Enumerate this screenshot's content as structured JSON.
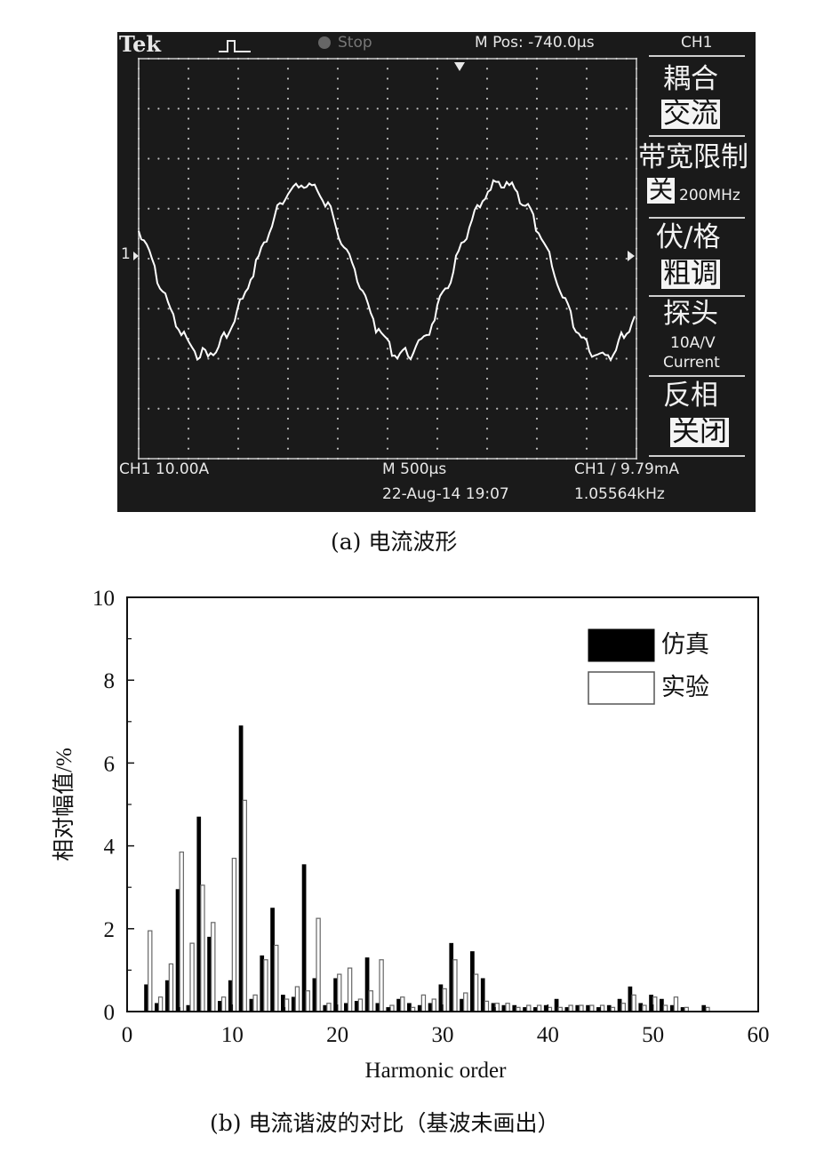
{
  "scope": {
    "brand": "Tek",
    "status": "Stop",
    "mpos": "M Pos: -740.0µs",
    "channel": "CH1",
    "ch_scale": "CH1 10.00A",
    "timebase": "M 500µs",
    "trigger": "CH1 ∕ 9.79mA",
    "datetime": "22-Aug-14 19:07",
    "frequency": "1.05564kHz",
    "ch_marker": "1",
    "menu": {
      "coupling_title": "耦合",
      "coupling_value": "交流",
      "bw_title": "带宽限制",
      "bw_value": "关",
      "bw_freq": "200MHz",
      "vdiv_title": "伏/格",
      "vdiv_value": "粗调",
      "probe_title": "探头",
      "probe_ratio": "10A/V",
      "probe_type": "Current",
      "invert_title": "反相",
      "invert_value": "关闭"
    },
    "colors": {
      "screen": "#1a1a1a",
      "trace": "#ffffff",
      "grid": "#bbbbbb"
    }
  },
  "captions": {
    "a": "(a) 电流波形",
    "b": "(b) 电流谐波的对比（基波未画出）"
  },
  "chart_data": {
    "type": "bar",
    "xlabel": "Harmonic order",
    "ylabel": "相对幅值/%",
    "xlim": [
      0,
      60
    ],
    "ylim": [
      0,
      10
    ],
    "xticks": [
      0,
      10,
      20,
      30,
      40,
      50,
      60
    ],
    "yticks": [
      0,
      2,
      4,
      6,
      8,
      10
    ],
    "grid": false,
    "legend_position": "top-right",
    "series": [
      {
        "name": "仿真",
        "color": "#000000",
        "x": [
          2,
          3,
          4,
          5,
          6,
          7,
          8,
          9,
          10,
          11,
          12,
          13,
          14,
          15,
          16,
          17,
          18,
          19,
          20,
          21,
          22,
          23,
          24,
          25,
          26,
          27,
          28,
          29,
          30,
          31,
          32,
          33,
          34,
          35,
          36,
          37,
          38,
          39,
          40,
          41,
          42,
          43,
          44,
          45,
          46,
          47,
          48,
          49,
          50,
          51,
          52,
          53,
          55
        ],
        "values": [
          0.65,
          0.2,
          0.75,
          2.95,
          0.15,
          4.7,
          1.8,
          0.25,
          0.75,
          6.9,
          0.3,
          1.35,
          2.5,
          0.4,
          0.35,
          3.55,
          0.8,
          0.15,
          0.8,
          0.2,
          0.25,
          1.3,
          0.2,
          0.1,
          0.3,
          0.2,
          0.15,
          0.2,
          0.65,
          1.65,
          0.3,
          1.45,
          0.8,
          0.2,
          0.15,
          0.15,
          0.1,
          0.1,
          0.15,
          0.3,
          0.1,
          0.15,
          0.15,
          0.1,
          0.15,
          0.3,
          0.6,
          0.2,
          0.4,
          0.3,
          0.15,
          0.1,
          0.15
        ]
      },
      {
        "name": "实验",
        "color": "#ffffff",
        "x": [
          2,
          3,
          4,
          5,
          6,
          7,
          8,
          9,
          10,
          11,
          12,
          13,
          14,
          15,
          16,
          17,
          18,
          19,
          20,
          21,
          22,
          23,
          24,
          25,
          26,
          27,
          28,
          29,
          30,
          31,
          32,
          33,
          34,
          35,
          36,
          37,
          38,
          39,
          40,
          41,
          42,
          43,
          44,
          45,
          46,
          47,
          48,
          49,
          50,
          51,
          52,
          53,
          55
        ],
        "values": [
          1.95,
          0.35,
          1.15,
          3.85,
          1.65,
          3.05,
          2.15,
          0.35,
          3.7,
          5.1,
          0.4,
          1.25,
          1.6,
          0.3,
          0.6,
          0.5,
          2.25,
          0.2,
          0.9,
          1.05,
          0.3,
          0.5,
          1.25,
          0.15,
          0.35,
          0.1,
          0.4,
          0.3,
          0.55,
          1.25,
          0.45,
          0.9,
          0.25,
          0.2,
          0.2,
          0.1,
          0.15,
          0.15,
          0.1,
          0.1,
          0.15,
          0.15,
          0.15,
          0.15,
          0.1,
          0.2,
          0.4,
          0.15,
          0.35,
          0.15,
          0.35,
          0.1,
          0.1
        ]
      }
    ]
  }
}
